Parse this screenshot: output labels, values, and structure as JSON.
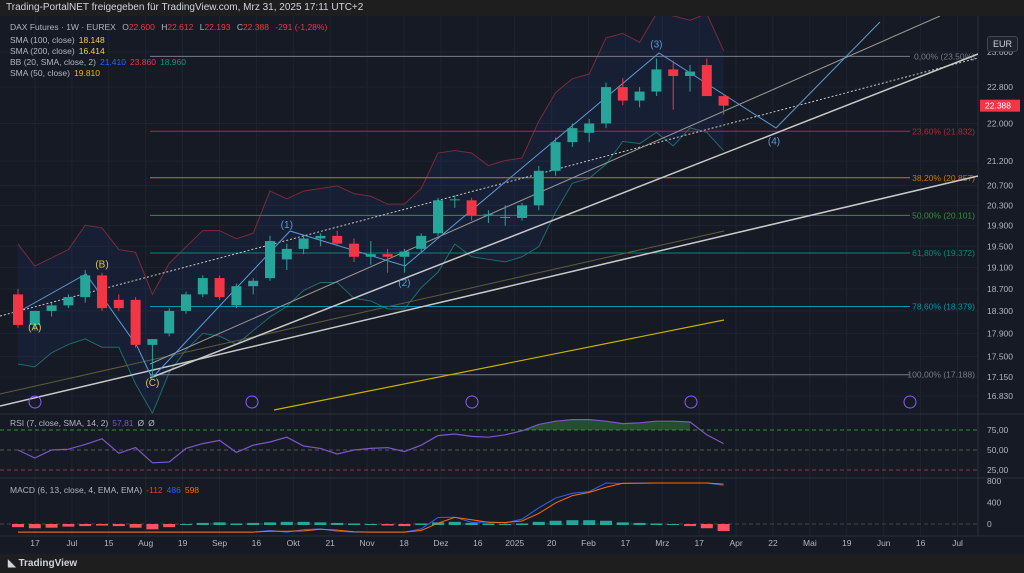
{
  "header": {
    "share_text": "Trading-PortalNET freigegeben für TradingView.com, Mrz 31, 2025 17:11 UTC+2"
  },
  "footer": {
    "logo_text": "TradingView"
  },
  "currency_button": "EUR",
  "legend": {
    "symbol": "DAX Futures · 1W · EUREX",
    "o_label": "O",
    "o": "22.600",
    "h_label": "H",
    "h": "22.612",
    "l_label": "L",
    "l": "22.193",
    "c_label": "C",
    "c": "22.388",
    "change": "-291 (-1,28%)",
    "sma100": {
      "label": "SMA (100, close)",
      "value": "18.148"
    },
    "sma200": {
      "label": "SMA (200, close)",
      "value": "16.414"
    },
    "bb": {
      "label": "BB (20, SMA, close, 2)",
      "basis": "21.410",
      "upper": "23.860",
      "lower": "18.960"
    },
    "sma50": {
      "label": "SMA (50, close)",
      "value": "19.810"
    },
    "rsi": {
      "label": "RSI (7, close, SMA, 14, 2)",
      "value": "57,81",
      "extra1": "Ø",
      "extra2": "Ø"
    },
    "macd": {
      "label": "MACD (6, 13, close, 4, EMA, EMA)",
      "hist": "-112",
      "macd": "486",
      "signal": "598"
    }
  },
  "colors": {
    "up": "#26a69a",
    "down": "#f23645",
    "bg": "#161a25",
    "rsi": "#7e57c2",
    "macd": "#2962ff",
    "signal": "#ff6d00",
    "sma50": "#f0b90b"
  },
  "chart_data": {
    "type": "candlestick",
    "title": "DAX Futures · 1W · EUREX",
    "price_axis": {
      "scale": "log",
      "ticks": [
        "23.600",
        "22.800",
        "22.000",
        "21.200",
        "20.700",
        "20.300",
        "19.900",
        "19.500",
        "19.100",
        "18.700",
        "18.300",
        "17.900",
        "17.500",
        "17.150",
        "16.830"
      ],
      "last_price": "22.388"
    },
    "time_axis": {
      "ticks": [
        "17",
        "Jul",
        "15",
        "Aug",
        "19",
        "Sep",
        "16",
        "Okt",
        "21",
        "Nov",
        "18",
        "Dez",
        "16",
        "2025",
        "20",
        "Feb",
        "17",
        "Mrz",
        "17",
        "Apr",
        "22",
        "Mai",
        "19",
        "Jun",
        "16",
        "Jul"
      ]
    },
    "ohlc": [
      [
        18.6,
        18.7,
        18.0,
        18.05
      ],
      [
        18.05,
        18.3,
        17.95,
        18.3
      ],
      [
        18.3,
        18.45,
        18.2,
        18.4
      ],
      [
        18.4,
        18.6,
        18.35,
        18.55
      ],
      [
        18.55,
        19.05,
        18.45,
        18.95
      ],
      [
        18.95,
        19.0,
        18.3,
        18.35
      ],
      [
        18.5,
        18.6,
        18.3,
        18.35
      ],
      [
        18.5,
        18.55,
        17.65,
        17.7
      ],
      [
        17.7,
        17.8,
        17.15,
        17.8
      ],
      [
        17.9,
        18.35,
        17.85,
        18.3
      ],
      [
        18.3,
        18.65,
        18.25,
        18.6
      ],
      [
        18.6,
        18.95,
        18.55,
        18.9
      ],
      [
        18.9,
        18.95,
        18.5,
        18.55
      ],
      [
        18.4,
        18.8,
        18.35,
        18.75
      ],
      [
        18.75,
        18.9,
        18.6,
        18.85
      ],
      [
        18.9,
        19.7,
        18.85,
        19.6
      ],
      [
        19.25,
        19.55,
        19.05,
        19.45
      ],
      [
        19.45,
        19.7,
        19.35,
        19.65
      ],
      [
        19.65,
        19.75,
        19.5,
        19.7
      ],
      [
        19.7,
        19.8,
        19.5,
        19.55
      ],
      [
        19.55,
        19.65,
        19.2,
        19.3
      ],
      [
        19.3,
        19.6,
        19.15,
        19.35
      ],
      [
        19.35,
        19.45,
        19.0,
        19.3
      ],
      [
        19.3,
        19.45,
        19.0,
        19.4
      ],
      [
        19.45,
        19.75,
        19.4,
        19.7
      ],
      [
        19.75,
        20.45,
        19.7,
        20.4
      ],
      [
        20.4,
        20.5,
        20.25,
        20.42
      ],
      [
        20.4,
        20.45,
        20.0,
        20.1
      ],
      [
        20.1,
        20.2,
        19.95,
        20.12
      ],
      [
        20.05,
        20.3,
        19.9,
        20.07
      ],
      [
        20.05,
        20.35,
        20.0,
        20.3
      ],
      [
        20.3,
        21.1,
        20.2,
        21.0
      ],
      [
        21.0,
        21.7,
        20.9,
        21.6
      ],
      [
        21.6,
        22.0,
        21.5,
        21.9
      ],
      [
        21.8,
        22.1,
        21.6,
        22.0
      ],
      [
        22.0,
        22.9,
        21.9,
        22.8
      ],
      [
        22.8,
        23.0,
        22.4,
        22.5
      ],
      [
        22.5,
        22.8,
        22.35,
        22.7
      ],
      [
        22.7,
        23.45,
        22.6,
        23.2
      ],
      [
        23.2,
        23.4,
        22.3,
        23.05
      ],
      [
        23.05,
        23.3,
        22.7,
        23.15
      ],
      [
        23.3,
        23.45,
        22.6,
        22.6
      ],
      [
        22.6,
        22.612,
        22.193,
        22.388
      ]
    ],
    "fib_levels": [
      {
        "label": "0,00% (23.50%)",
        "price": 23.5,
        "color": "#787b86"
      },
      {
        "label": "23,60% (21.832)",
        "price": 21.832,
        "color": "#b22833"
      },
      {
        "label": "38,20% (20.857)",
        "price": 20.857,
        "color": "#c07a0f"
      },
      {
        "label": "50,00% (20.101)",
        "price": 20.101,
        "color": "#388e3c"
      },
      {
        "label": "61,80% (19.372)",
        "price": 19.372,
        "color": "#00897b"
      },
      {
        "label": "78,60% (18.379)",
        "price": 18.379,
        "color": "#0097a7"
      },
      {
        "label": "100,00% (17.188)",
        "price": 17.188,
        "color": "#787b86"
      }
    ],
    "wave_labels": [
      {
        "text": "(A)",
        "i": 1,
        "price": 17.95,
        "color": "#e0c341"
      },
      {
        "text": "(B)",
        "i": 5,
        "price": 19.1,
        "color": "#e0c341"
      },
      {
        "text": "(C)",
        "i": 8,
        "price": 17.0,
        "color": "#e0c341"
      },
      {
        "text": "(1)",
        "i": 16,
        "price": 19.85,
        "color": "#5b9bd5"
      },
      {
        "text": "(2)",
        "i": 23,
        "price": 18.75,
        "color": "#5b9bd5"
      },
      {
        "text": "(3)",
        "i": 38,
        "price": 23.7,
        "color": "#5b9bd5"
      },
      {
        "text": "(4)",
        "i": 45,
        "price": 21.55,
        "color": "#5b9bd5"
      }
    ],
    "rsi": {
      "ticks": [
        "75,00",
        "50,00",
        "25,00"
      ],
      "values": [
        50,
        40,
        50,
        51,
        57,
        64,
        46,
        53,
        34,
        35,
        52,
        58,
        62,
        47,
        56,
        60,
        66,
        55,
        52,
        45,
        50,
        52,
        53,
        48,
        56,
        68,
        70,
        67,
        66,
        69,
        74,
        82,
        86,
        88,
        88,
        86,
        83,
        84,
        86,
        86,
        85,
        69,
        58
      ]
    },
    "macd": {
      "ticks": [
        "800",
        "400",
        "0"
      ],
      "hist": [
        -40,
        -60,
        -50,
        -30,
        -20,
        -10,
        -20,
        -50,
        -80,
        -40,
        0,
        20,
        30,
        10,
        20,
        30,
        40,
        40,
        30,
        20,
        10,
        0,
        -10,
        -20,
        10,
        30,
        40,
        20,
        10,
        0,
        10,
        40,
        60,
        70,
        70,
        60,
        30,
        20,
        10,
        0,
        -20,
        -60,
        -112
      ]
    }
  }
}
